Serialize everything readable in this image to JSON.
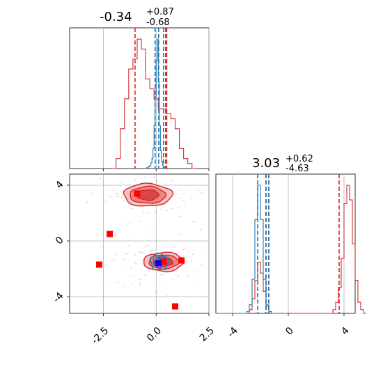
{
  "chart_data": {
    "type": "corner",
    "colors": {
      "red": "#d62728",
      "blue": "#1f77b4",
      "red_marker": "#ff0000",
      "blue_marker": "#0000ff"
    },
    "grid": true,
    "x_axis": {
      "param1_range": [
        -4.1,
        2.5
      ],
      "param1_ticks": [
        "-2.5",
        "0.0",
        "2.5"
      ],
      "param1_tick_values": [
        -2.5,
        0.0,
        2.5
      ],
      "param2_range": [
        -5.2,
        4.8
      ],
      "param2_ticks": [
        "-4",
        "0",
        "4"
      ],
      "param2_tick_values": [
        -4,
        0,
        4
      ]
    },
    "y_axis": {
      "param2_ticks": [
        "4",
        "0",
        "-4"
      ],
      "param2_tick_values": [
        4,
        0,
        -4
      ]
    },
    "panels": [
      {
        "id": "param1-marginal",
        "type": "histogram",
        "title_value": "-0.34",
        "title_plus": "+0.87",
        "title_minus": "-0.68",
        "red_quantiles": [
          -1.0,
          0.45,
          0.5
        ],
        "blue_quantiles": [
          -0.05,
          0.12,
          0.35
        ],
        "red_hist": {
          "edges_start": -2.1,
          "bin_width": 0.2,
          "counts": [
            0,
            2,
            8,
            14,
            20,
            22,
            26,
            24,
            18,
            16,
            14,
            12,
            12,
            11,
            10,
            8,
            4,
            2,
            1,
            0
          ]
        },
        "blue_hist": {
          "edges_start": -0.5,
          "bin_width": 0.05,
          "counts": [
            0,
            1,
            2,
            3,
            4,
            8,
            14,
            28,
            60,
            100,
            150,
            180,
            120,
            60,
            25,
            10,
            4,
            2,
            0
          ]
        }
      },
      {
        "id": "param2-marginal",
        "type": "histogram",
        "title_value": "3.03",
        "title_plus": "+0.62",
        "title_minus": "-4.63",
        "red_quantiles": [
          -1.6,
          -1.4,
          3.65
        ],
        "blue_quantiles": [
          -2.2,
          -1.6,
          -1.4
        ],
        "red_hist": {
          "edges_start": -5.2,
          "bin_width": 0.2,
          "counts": [
            0,
            0,
            0,
            0,
            0,
            0,
            0,
            0,
            0,
            0,
            0,
            0,
            2,
            8,
            18,
            28,
            22,
            12,
            4,
            1,
            0,
            0,
            0,
            0,
            0,
            0,
            0,
            0,
            0,
            0,
            0,
            0,
            0,
            0,
            0,
            0,
            0,
            0,
            0,
            0,
            0,
            0,
            2,
            6,
            14,
            30,
            60,
            70,
            62,
            38,
            18,
            6,
            2,
            0
          ]
        },
        "blue_hist": {
          "edges_start": -5.2,
          "bin_width": 0.2,
          "counts": [
            0,
            0,
            0,
            0,
            0,
            0,
            0,
            0,
            0,
            0,
            0,
            2,
            10,
            40,
            110,
            150,
            110,
            40,
            10,
            2,
            0
          ]
        }
      },
      {
        "id": "joint",
        "type": "contour-scatter",
        "red_modes": [
          {
            "x": -0.4,
            "y": 3.3,
            "sx": 0.85,
            "sy": 0.6
          },
          {
            "x": 0.35,
            "y": -1.5,
            "sx": 0.7,
            "sy": 0.5
          }
        ],
        "blue_mode": {
          "x": 0.15,
          "y": -1.5,
          "sx": 0.32,
          "sy": 0.45
        },
        "red_markers": [
          {
            "x": -0.9,
            "y": 3.4
          },
          {
            "x": -2.2,
            "y": 0.5
          },
          {
            "x": -2.7,
            "y": -1.7
          },
          {
            "x": 0.35,
            "y": -1.5
          },
          {
            "x": 1.2,
            "y": -1.4
          },
          {
            "x": 0.9,
            "y": -4.7
          }
        ],
        "blue_marker": {
          "x": 0.1,
          "y": -1.6
        }
      }
    ]
  }
}
